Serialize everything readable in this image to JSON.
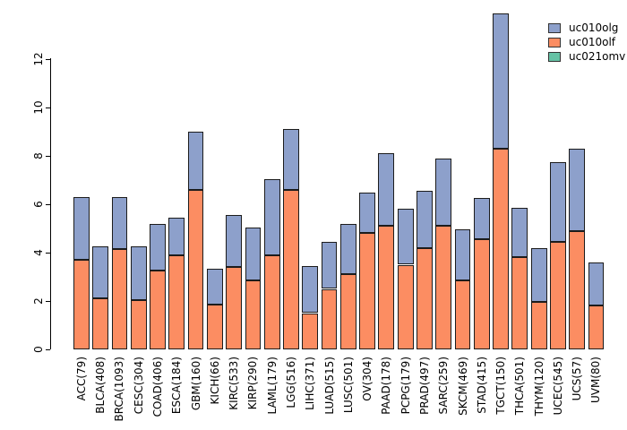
{
  "chart_data": {
    "type": "bar",
    "stacked": true,
    "title": "",
    "xlabel": "",
    "ylabel": "",
    "categories": [
      "ACC(79)",
      "BLCA(408)",
      "BRCA(1093)",
      "CESC(304)",
      "COAD(406)",
      "ESCA(184)",
      "GBM(160)",
      "KICH(66)",
      "KIRC(533)",
      "KIRP(290)",
      "LAML(179)",
      "LGG(516)",
      "LIHC(371)",
      "LUAD(515)",
      "LUSC(501)",
      "OV(304)",
      "PAAD(178)",
      "PCPG(179)",
      "PRAD(497)",
      "SARC(259)",
      "SKCM(469)",
      "STAD(415)",
      "TGCT(150)",
      "THCA(501)",
      "THYM(120)",
      "UCEC(545)",
      "UCS(57)",
      "UVM(80)"
    ],
    "series": [
      {
        "name": "uc010olg",
        "color": "#8da0cb",
        "values": [
          2.6,
          2.15,
          2.15,
          2.2,
          1.95,
          1.55,
          2.4,
          1.5,
          2.15,
          2.2,
          3.15,
          2.5,
          1.95,
          1.95,
          2.1,
          1.7,
          3.0,
          2.3,
          2.35,
          2.8,
          2.1,
          1.7,
          5.6,
          2.05,
          2.25,
          3.3,
          3.4,
          1.8
        ]
      },
      {
        "name": "uc010olf",
        "color": "#fc8d62",
        "values": [
          3.7,
          2.1,
          4.15,
          2.05,
          3.25,
          3.9,
          6.6,
          1.85,
          3.4,
          2.85,
          3.9,
          6.6,
          1.5,
          2.5,
          3.1,
          4.8,
          5.1,
          3.5,
          4.2,
          5.1,
          2.85,
          4.55,
          8.3,
          3.8,
          1.95,
          4.45,
          4.9,
          1.8
        ]
      },
      {
        "name": "uc021omv",
        "color": "#66c2a5",
        "values": [
          0,
          0,
          0,
          0,
          0,
          0,
          0,
          0,
          0,
          0,
          0,
          0,
          0,
          0,
          0,
          0,
          0,
          0,
          0,
          0,
          0,
          0,
          0,
          0,
          0,
          0,
          0,
          0
        ]
      }
    ],
    "stack_order_bottom_to_top": [
      "uc010olf",
      "uc010olg",
      "uc021omv"
    ],
    "yticks": [
      0,
      2,
      4,
      6,
      8,
      10,
      12
    ],
    "ylim": [
      0,
      14
    ],
    "grid": false,
    "legend_position": "top-right",
    "bar_border_color": "#1c1c1c",
    "axis_color": "#000000",
    "text_color": "#000000"
  }
}
